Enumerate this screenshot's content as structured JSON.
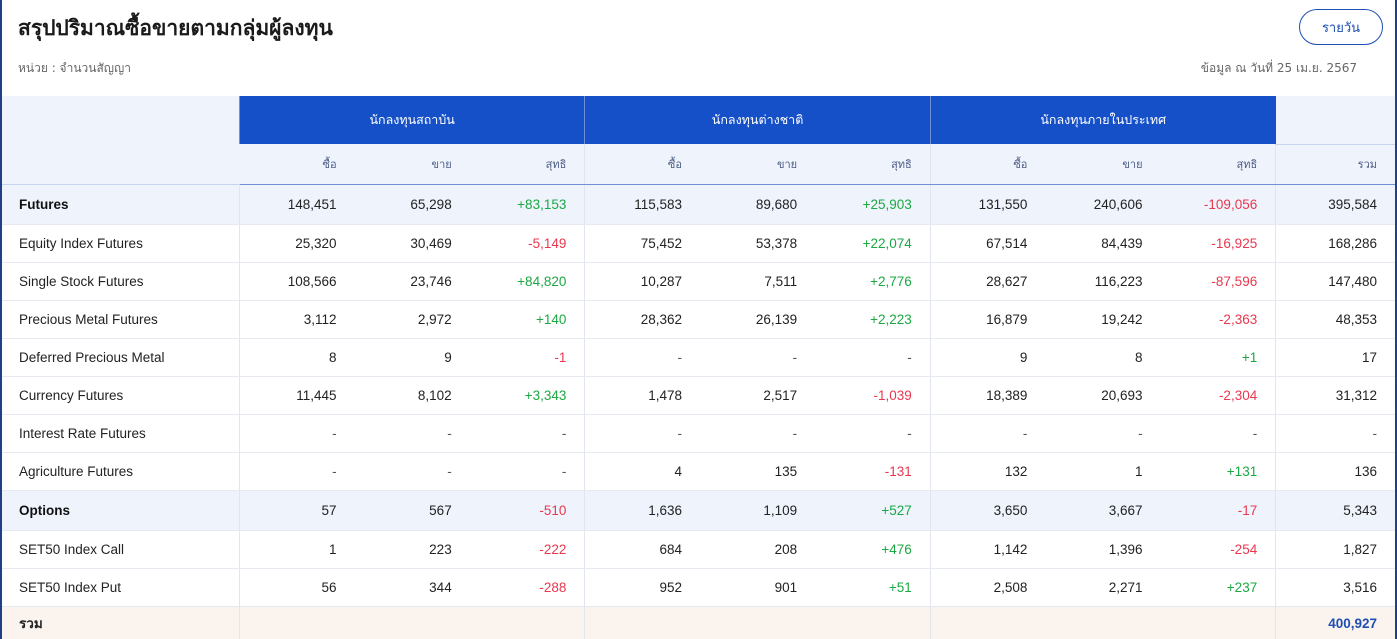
{
  "header": {
    "title": "สรุปปริมาณซื้อขายตามกลุ่มผู้ลงทุน",
    "unit": "หน่วย : จำนวนสัญญา",
    "as_of": "ข้อมูล ณ วันที่ 25 เม.ย. 2567",
    "daily_button": "รายวัน"
  },
  "table": {
    "groups": [
      "นักลงทุนสถาบัน",
      "นักลงทุนต่างชาติ",
      "นักลงทุนภายในประเทศ"
    ],
    "sub_headers": [
      "ซื้อ",
      "ขาย",
      "สุทธิ"
    ],
    "total_header": "รวม",
    "rows": [
      {
        "name": "Futures",
        "cat": true,
        "cells": [
          "148,451",
          "65,298",
          "+83,153",
          "115,583",
          "89,680",
          "+25,903",
          "131,550",
          "240,606",
          "-109,056",
          "395,584"
        ]
      },
      {
        "name": "Equity Index Futures",
        "cat": false,
        "cells": [
          "25,320",
          "30,469",
          "-5,149",
          "75,452",
          "53,378",
          "+22,074",
          "67,514",
          "84,439",
          "-16,925",
          "168,286"
        ]
      },
      {
        "name": "Single Stock Futures",
        "cat": false,
        "cells": [
          "108,566",
          "23,746",
          "+84,820",
          "10,287",
          "7,511",
          "+2,776",
          "28,627",
          "116,223",
          "-87,596",
          "147,480"
        ]
      },
      {
        "name": "Precious Metal Futures",
        "cat": false,
        "cells": [
          "3,112",
          "2,972",
          "+140",
          "28,362",
          "26,139",
          "+2,223",
          "16,879",
          "19,242",
          "-2,363",
          "48,353"
        ]
      },
      {
        "name": "Deferred Precious Metal",
        "cat": false,
        "cells": [
          "8",
          "9",
          "-1",
          "-",
          "-",
          "-",
          "9",
          "8",
          "+1",
          "17"
        ]
      },
      {
        "name": "Currency Futures",
        "cat": false,
        "cells": [
          "11,445",
          "8,102",
          "+3,343",
          "1,478",
          "2,517",
          "-1,039",
          "18,389",
          "20,693",
          "-2,304",
          "31,312"
        ]
      },
      {
        "name": "Interest Rate Futures",
        "cat": false,
        "cells": [
          "-",
          "-",
          "-",
          "-",
          "-",
          "-",
          "-",
          "-",
          "-",
          "-"
        ]
      },
      {
        "name": "Agriculture Futures",
        "cat": false,
        "cells": [
          "-",
          "-",
          "-",
          "4",
          "135",
          "-131",
          "132",
          "1",
          "+131",
          "136"
        ]
      },
      {
        "name": "Options",
        "cat": true,
        "cells": [
          "57",
          "567",
          "-510",
          "1,636",
          "1,109",
          "+527",
          "3,650",
          "3,667",
          "-17",
          "5,343"
        ]
      },
      {
        "name": "SET50 Index Call",
        "cat": false,
        "cells": [
          "1",
          "223",
          "-222",
          "684",
          "208",
          "+476",
          "1,142",
          "1,396",
          "-254",
          "1,827"
        ]
      },
      {
        "name": "SET50 Index Put",
        "cat": false,
        "cells": [
          "56",
          "344",
          "-288",
          "952",
          "901",
          "+51",
          "2,508",
          "2,271",
          "+237",
          "3,516"
        ]
      }
    ],
    "total_row": {
      "label": "รวม",
      "grand_total": "400,927"
    }
  },
  "colors": {
    "header_blue": "#1550c8",
    "positive": "#1ca843",
    "negative": "#e8384f",
    "accent": "#1e4fb3"
  }
}
